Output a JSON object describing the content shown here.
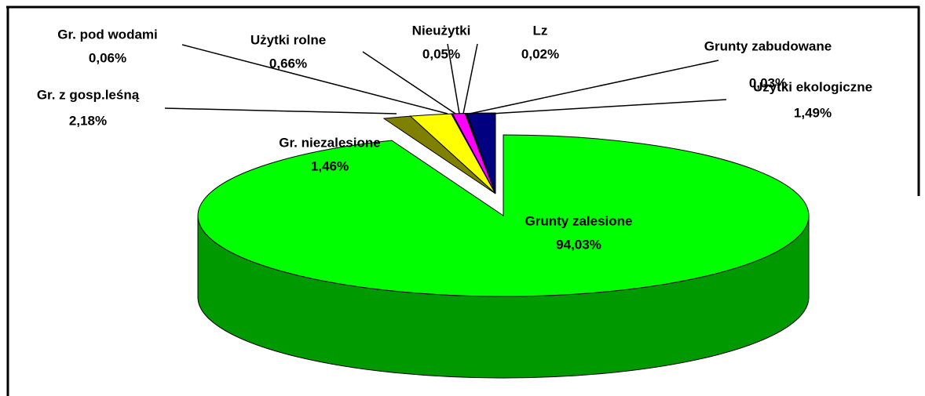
{
  "chart_data": {
    "type": "pie3d",
    "categories": [
      "Grunty zalesione",
      "Gr. niezalesione",
      "Gr. z gosp.leśną",
      "Gr. pod wodami",
      "Użytki rolne",
      "Nieużytki",
      "Lz",
      "Grunty zabudowane",
      "Użytki ekologiczne"
    ],
    "values": [
      94.03,
      1.46,
      2.18,
      0.06,
      0.66,
      0.05,
      0.02,
      0.03,
      1.49
    ],
    "value_labels": [
      "94,03%",
      "1,46%",
      "2,18%",
      "0,06%",
      "0,66%",
      "0,05%",
      "0,02%",
      "0,03%",
      "1,49%"
    ],
    "colors": [
      "#00ff00",
      "#808000",
      "#ffff00",
      "#993366",
      "#ff00ff",
      "#00cc33",
      "#33ccff",
      "#ffffff",
      "#000080"
    ]
  }
}
